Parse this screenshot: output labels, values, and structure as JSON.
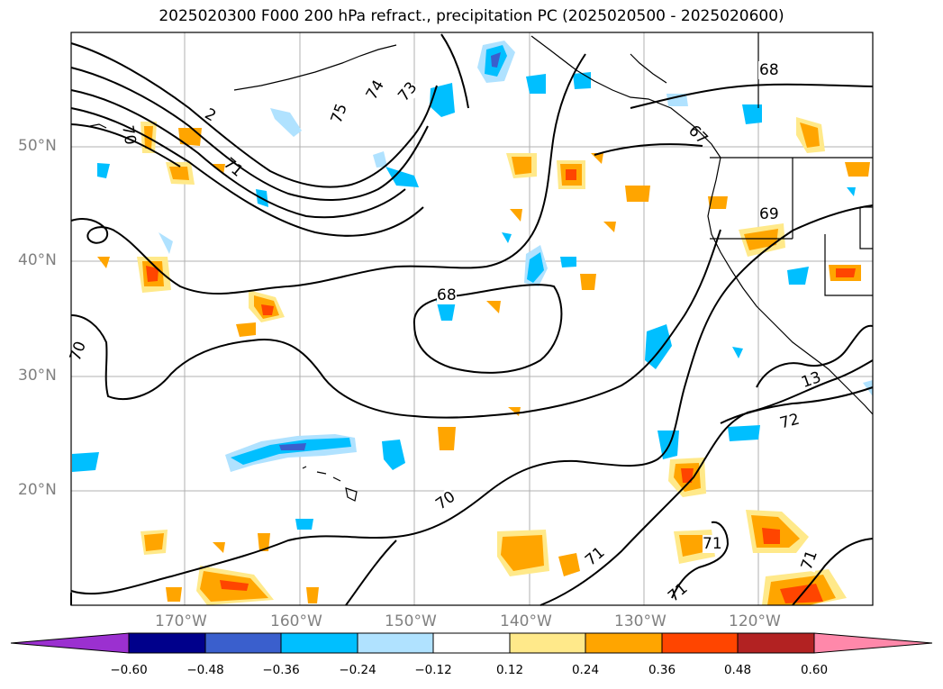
{
  "title": "2025020300 F000 200 hPa refract., precipitation PC (2025020500 - 2025020600)",
  "lat_labels": [
    "50°N",
    "40°N",
    "30°N",
    "20°N"
  ],
  "lon_labels": [
    "170°W",
    "160°W",
    "150°W",
    "140°W",
    "130°W",
    "120°W"
  ],
  "contour_labels": [
    "68",
    "67",
    "69",
    "13",
    "72",
    "70",
    "71",
    "71",
    "71",
    "71",
    "71",
    "70",
    "70",
    "68",
    "73",
    "74",
    "75",
    "2"
  ],
  "colorbar": {
    "ticks": [
      "−0.60",
      "−0.48",
      "−0.36",
      "−0.24",
      "−0.12",
      "0.12",
      "0.24",
      "0.36",
      "0.48",
      "0.60"
    ],
    "colors": [
      "#9b30d0",
      "#00008b",
      "#3a5fcd",
      "#00bfff",
      "#b0e2ff",
      "#ffffff",
      "#ffe98a",
      "#ffa500",
      "#ff4500",
      "#b22222",
      "#ff88aa"
    ]
  },
  "map_colors": {
    "land_line": "#000000",
    "grid": "#b0b0b0",
    "pos_low": "#ffe98a",
    "pos_mid": "#ffa500",
    "pos_high": "#ff4500",
    "neg_low": "#b0e2ff",
    "neg_mid": "#00bfff",
    "neg_high": "#3a5fcd"
  }
}
